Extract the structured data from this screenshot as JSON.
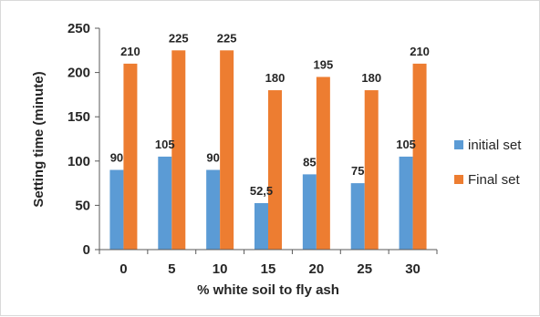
{
  "chart_data": {
    "type": "bar",
    "title": "",
    "xlabel": "% white soil to fly ash",
    "ylabel": "Setting time (minute)",
    "categories": [
      "0",
      "5",
      "10",
      "15",
      "20",
      "25",
      "30"
    ],
    "series": [
      {
        "name": "initial set",
        "values": [
          90,
          105,
          90,
          52.5,
          85,
          75,
          105
        ],
        "labels": [
          "90",
          "105",
          "90",
          "52,5",
          "85",
          "75",
          "105"
        ],
        "color": "#5B9BD5"
      },
      {
        "name": "Final set",
        "values": [
          210,
          225,
          225,
          180,
          195,
          180,
          210
        ],
        "labels": [
          "210",
          "225",
          "225",
          "180",
          "195",
          "180",
          "210"
        ],
        "color": "#ED7D31"
      }
    ],
    "ylim": [
      0,
      250
    ],
    "yticks": [
      "0",
      "50",
      "100",
      "150",
      "200",
      "250"
    ],
    "grid": false,
    "legend": "right"
  }
}
